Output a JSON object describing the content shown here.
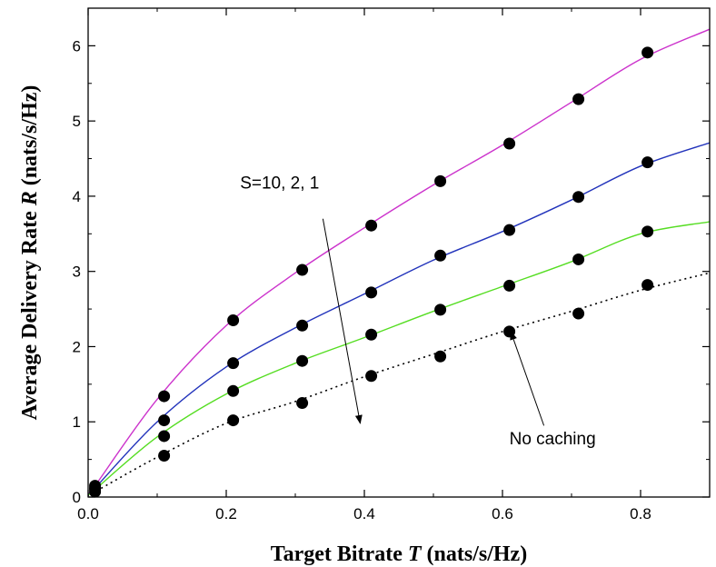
{
  "chart_data": {
    "type": "line",
    "xlabel_prefix": "Target Bitrate ",
    "xlabel_var": "T",
    "xlabel_unit": " (nats/s/Hz)",
    "ylabel_prefix": "Average Delivery Rate ",
    "ylabel_var": "R",
    "ylabel_unit": " (nats/s/Hz)",
    "xlim": [
      0.0,
      0.9
    ],
    "ylim": [
      0,
      6.5
    ],
    "xticks": [
      "0.0",
      "0.2",
      "0.4",
      "0.6",
      "0.8"
    ],
    "yticks": [
      "0",
      "1",
      "2",
      "3",
      "4",
      "5",
      "6"
    ],
    "grid": false,
    "series": [
      {
        "color": "#cc33cc",
        "style": "solid",
        "curve": {
          "x": [
            0.0,
            0.01,
            0.1,
            0.2,
            0.3,
            0.4,
            0.5,
            0.6,
            0.7,
            0.8,
            0.9
          ],
          "y": [
            0.05,
            0.15,
            1.3,
            2.28,
            2.98,
            3.58,
            4.15,
            4.68,
            5.25,
            5.82,
            6.22
          ]
        },
        "points": {
          "x": [
            0.01,
            0.11,
            0.21,
            0.31,
            0.41,
            0.51,
            0.61,
            0.71,
            0.81
          ],
          "y": [
            0.15,
            1.34,
            2.35,
            3.02,
            3.61,
            4.2,
            4.7,
            5.29,
            5.91
          ]
        }
      },
      {
        "color": "#2233bb",
        "style": "solid",
        "curve": {
          "x": [
            0.0,
            0.01,
            0.1,
            0.2,
            0.3,
            0.4,
            0.5,
            0.6,
            0.7,
            0.8,
            0.9
          ],
          "y": [
            0.04,
            0.12,
            1.0,
            1.73,
            2.25,
            2.7,
            3.15,
            3.53,
            3.95,
            4.4,
            4.71
          ]
        },
        "points": {
          "x": [
            0.01,
            0.11,
            0.21,
            0.31,
            0.41,
            0.51,
            0.61,
            0.71,
            0.81
          ],
          "y": [
            0.12,
            1.02,
            1.78,
            2.28,
            2.72,
            3.21,
            3.55,
            3.99,
            4.45
          ]
        }
      },
      {
        "color": "#55dd22",
        "style": "solid",
        "curve": {
          "x": [
            0.0,
            0.01,
            0.1,
            0.2,
            0.3,
            0.4,
            0.5,
            0.6,
            0.7,
            0.8,
            0.9
          ],
          "y": [
            0.03,
            0.1,
            0.8,
            1.37,
            1.78,
            2.12,
            2.47,
            2.8,
            3.13,
            3.5,
            3.66
          ]
        },
        "points": {
          "x": [
            0.01,
            0.11,
            0.21,
            0.31,
            0.41,
            0.51,
            0.61,
            0.71,
            0.81
          ],
          "y": [
            0.1,
            0.81,
            1.41,
            1.81,
            2.16,
            2.49,
            2.81,
            3.16,
            3.53
          ]
        }
      },
      {
        "color": "#000000",
        "style": "dotted",
        "curve": {
          "x": [
            0.0,
            0.01,
            0.1,
            0.2,
            0.3,
            0.4,
            0.5,
            0.6,
            0.7,
            0.8,
            0.9
          ],
          "y": [
            0.02,
            0.07,
            0.53,
            0.98,
            1.27,
            1.6,
            1.9,
            2.2,
            2.47,
            2.75,
            2.98
          ]
        },
        "points": {
          "x": [
            0.01,
            0.11,
            0.21,
            0.31,
            0.41,
            0.51,
            0.61,
            0.71,
            0.81
          ],
          "y": [
            0.07,
            0.55,
            1.02,
            1.25,
            1.61,
            1.87,
            2.2,
            2.44,
            2.82
          ]
        }
      }
    ],
    "annotations": [
      {
        "text": "S=10, 2, 1",
        "text_at": [
          0.22,
          4.1
        ],
        "arrow_from": [
          0.34,
          3.7
        ],
        "arrow_to": [
          0.394,
          0.98
        ]
      },
      {
        "text": "No caching",
        "text_at": [
          0.61,
          0.7
        ],
        "arrow_from": [
          0.66,
          0.95
        ],
        "arrow_to": [
          0.612,
          2.2
        ]
      }
    ]
  }
}
